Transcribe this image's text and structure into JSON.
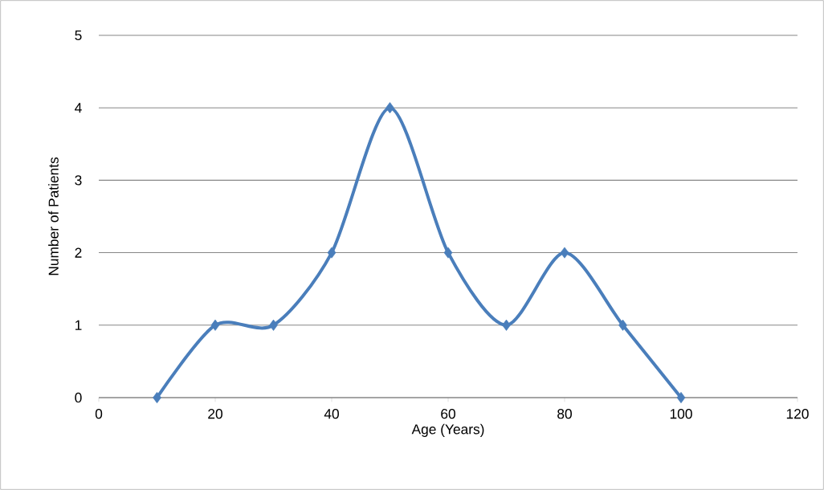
{
  "chart_data": {
    "type": "line",
    "xlabel": "Age (Years)",
    "ylabel": "Number of Patients",
    "x": [
      10,
      20,
      30,
      40,
      50,
      60,
      70,
      80,
      90,
      100
    ],
    "values": [
      0,
      1,
      1,
      2,
      4,
      2,
      1,
      2,
      1,
      0
    ],
    "color": "#4a7ebb",
    "marker": "diamond",
    "line_style": "solid",
    "xlim": [
      0,
      120
    ],
    "ylim": [
      0,
      5
    ],
    "xticks": [
      0,
      20,
      40,
      60,
      80,
      100,
      120
    ],
    "yticks": [
      0,
      1,
      2,
      3,
      4,
      5
    ],
    "grid": "y"
  }
}
